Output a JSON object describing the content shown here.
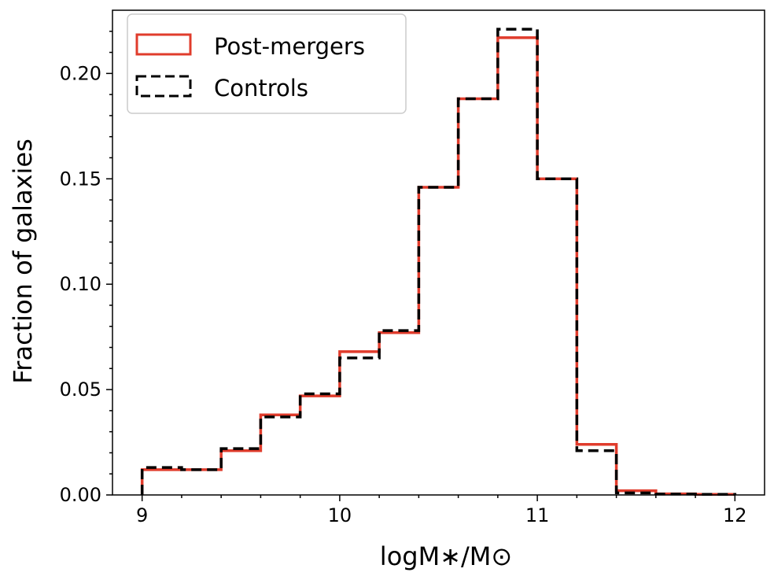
{
  "chart_data": {
    "type": "histogram-step",
    "xlabel": "logM∗/M⊙",
    "ylabel": "Fraction of galaxies",
    "xlim": [
      8.85,
      12.15
    ],
    "ylim": [
      0,
      0.23
    ],
    "x_ticks": [
      9,
      10,
      11,
      12
    ],
    "x_tick_labels": [
      "9",
      "10",
      "11",
      "12"
    ],
    "y_ticks": [
      0.0,
      0.05,
      0.1,
      0.15,
      0.2
    ],
    "y_tick_labels": [
      "0.00",
      "0.05",
      "0.10",
      "0.15",
      "0.20"
    ],
    "bin_edges": [
      9.0,
      9.2,
      9.4,
      9.6,
      9.8,
      10.0,
      10.2,
      10.4,
      10.6,
      10.8,
      11.0,
      11.2,
      11.4,
      11.6,
      11.8,
      12.0
    ],
    "series": [
      {
        "name": "Post-mergers",
        "color": "#e03c2c",
        "style": "solid",
        "values": [
          0.012,
          0.012,
          0.021,
          0.038,
          0.047,
          0.068,
          0.077,
          0.146,
          0.188,
          0.217,
          0.15,
          0.024,
          0.002,
          0.0005,
          0.0003
        ]
      },
      {
        "name": "Controls",
        "color": "#000000",
        "style": "dashed",
        "values": [
          0.013,
          0.012,
          0.022,
          0.037,
          0.048,
          0.065,
          0.078,
          0.146,
          0.188,
          0.221,
          0.15,
          0.021,
          0.001,
          0.0004,
          0.0003
        ]
      }
    ],
    "legend_position": "top-left",
    "grid": false
  }
}
